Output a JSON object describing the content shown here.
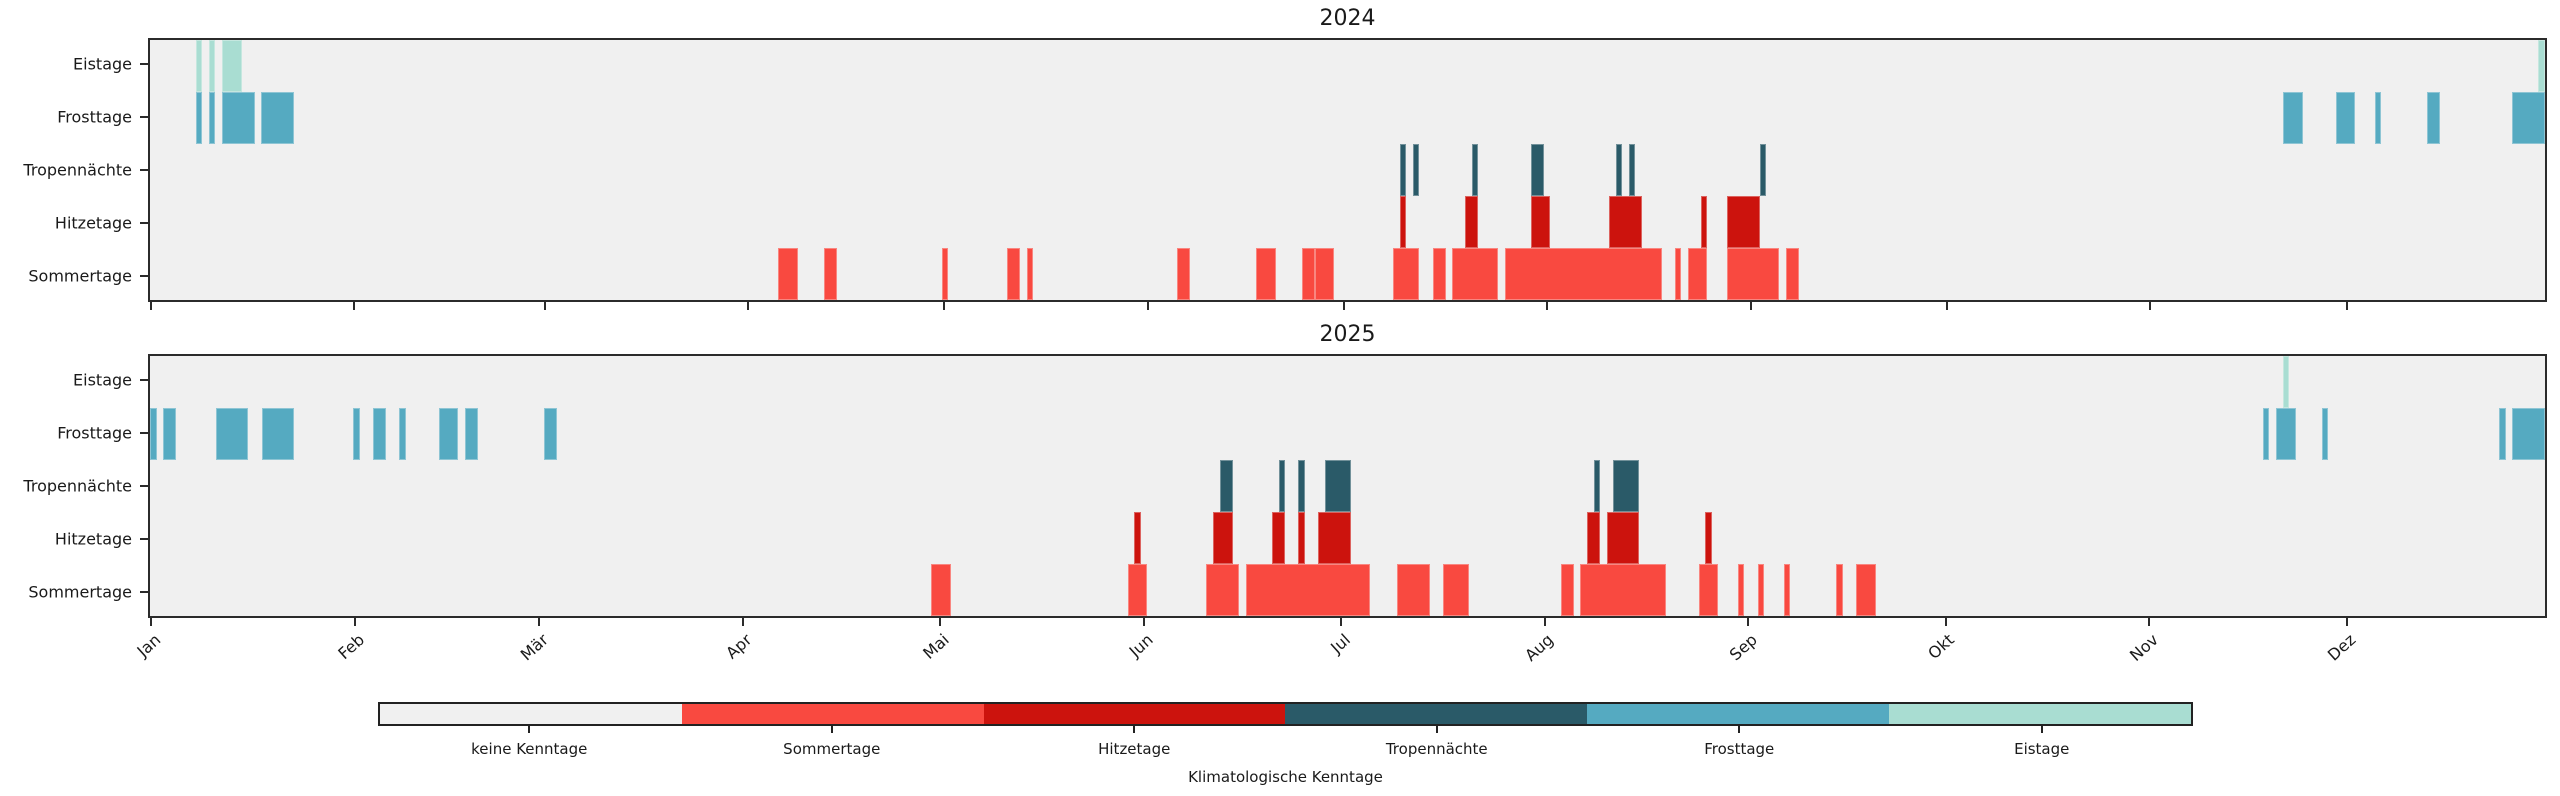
{
  "chart_data": {
    "type": "bar",
    "subtype": "broken-bar day-of-year timeline (matplotlib broken_barh style)",
    "categories": [
      "Eistage",
      "Frosttage",
      "Tropennächte",
      "Hitzetage",
      "Sommertage"
    ],
    "months": [
      "Jan",
      "Feb",
      "Mär",
      "Apr",
      "Mai",
      "Jun",
      "Jul",
      "Aug",
      "Sep",
      "Okt",
      "Nov",
      "Dez"
    ],
    "colors": {
      "keine": "#f0f0f0",
      "Sommertage": "#f94940",
      "Hitzetage": "#cc130d",
      "Tropennächte": "#2a5a68",
      "Frosttage": "#55aac1",
      "Eistage": "#a9ddd2"
    },
    "charts": [
      {
        "title": "2024",
        "n_days": 366,
        "month_starts": [
          0,
          31,
          60,
          91,
          121,
          152,
          182,
          213,
          244,
          274,
          305,
          335
        ],
        "series": {
          "Eistage": [
            [
              8,
              1
            ],
            [
              10,
              1
            ],
            [
              12,
              3
            ],
            [
              366,
              1
            ]
          ],
          "Frosttage": [
            [
              8,
              1
            ],
            [
              10,
              1
            ],
            [
              12,
              5
            ],
            [
              18,
              5
            ],
            [
              327,
              3
            ],
            [
              335,
              3
            ],
            [
              341,
              1
            ],
            [
              349,
              2
            ],
            [
              362,
              5
            ]
          ],
          "Tropennächte": [
            [
              192,
              1
            ],
            [
              194,
              1
            ],
            [
              203,
              1
            ],
            [
              212,
              2
            ],
            [
              225,
              1
            ],
            [
              227,
              1
            ],
            [
              247,
              1
            ]
          ],
          "Hitzetage": [
            [
              192,
              1
            ],
            [
              202,
              2
            ],
            [
              212,
              3
            ],
            [
              224,
              5
            ],
            [
              238,
              1
            ],
            [
              242,
              5
            ]
          ],
          "Sommertage": [
            [
              97,
              3
            ],
            [
              104,
              2
            ],
            [
              122,
              1
            ],
            [
              132,
              2
            ],
            [
              135,
              1
            ],
            [
              158,
              2
            ],
            [
              170,
              3
            ],
            [
              177,
              2
            ],
            [
              179,
              3
            ],
            [
              191,
              4
            ],
            [
              197,
              2
            ],
            [
              200,
              7
            ],
            [
              208,
              24
            ],
            [
              234,
              1
            ],
            [
              236,
              3
            ],
            [
              242,
              8
            ],
            [
              251,
              2
            ]
          ]
        }
      },
      {
        "title": "2025",
        "n_days": 365,
        "month_starts": [
          0,
          31,
          59,
          90,
          120,
          151,
          181,
          212,
          243,
          273,
          304,
          334
        ],
        "series": {
          "Eistage": [
            [
              326,
              1
            ]
          ],
          "Frosttage": [
            [
              1,
              1
            ],
            [
              3,
              2
            ],
            [
              11,
              5
            ],
            [
              18,
              5
            ],
            [
              32,
              1
            ],
            [
              35,
              2
            ],
            [
              39,
              1
            ],
            [
              45,
              3
            ],
            [
              49,
              2
            ],
            [
              61,
              2
            ],
            [
              323,
              1
            ],
            [
              325,
              3
            ],
            [
              332,
              1
            ],
            [
              359,
              1
            ],
            [
              361,
              5
            ]
          ],
          "Tropennächte": [
            [
              164,
              2
            ],
            [
              173,
              1
            ],
            [
              176,
              1
            ],
            [
              180,
              4
            ],
            [
              221,
              1
            ],
            [
              224,
              4
            ]
          ],
          "Hitzetage": [
            [
              151,
              1
            ],
            [
              163,
              3
            ],
            [
              172,
              2
            ],
            [
              176,
              1
            ],
            [
              179,
              5
            ],
            [
              220,
              2
            ],
            [
              223,
              5
            ],
            [
              238,
              1
            ]
          ],
          "Sommertage": [
            [
              120,
              3
            ],
            [
              150,
              3
            ],
            [
              162,
              5
            ],
            [
              168,
              19
            ],
            [
              191,
              5
            ],
            [
              198,
              4
            ],
            [
              216,
              2
            ],
            [
              219,
              13
            ],
            [
              237,
              3
            ],
            [
              243,
              1
            ],
            [
              246,
              1
            ],
            [
              250,
              1
            ],
            [
              258,
              1
            ],
            [
              261,
              3
            ]
          ]
        }
      }
    ],
    "legend": {
      "items": [
        {
          "label": "keine Kenntage",
          "color_key": "keine"
        },
        {
          "label": "Sommertage",
          "color_key": "Sommertage"
        },
        {
          "label": "Hitzetage",
          "color_key": "Hitzetage"
        },
        {
          "label": "Tropennächte",
          "color_key": "Tropennächte"
        },
        {
          "label": "Frosttage",
          "color_key": "Frosttage"
        },
        {
          "label": "Eistage",
          "color_key": "Eistage"
        }
      ],
      "axis_label": "Klimatologische Kenntage"
    }
  },
  "styles": {
    "figure_bg": "#ffffff",
    "plot_bg": "#f0f0f0",
    "spine_color": "#2b2b2b",
    "text_color": "#1a1a1a"
  },
  "layout_note": "two stacked year timelines sharing month axis, legend colorbar below"
}
